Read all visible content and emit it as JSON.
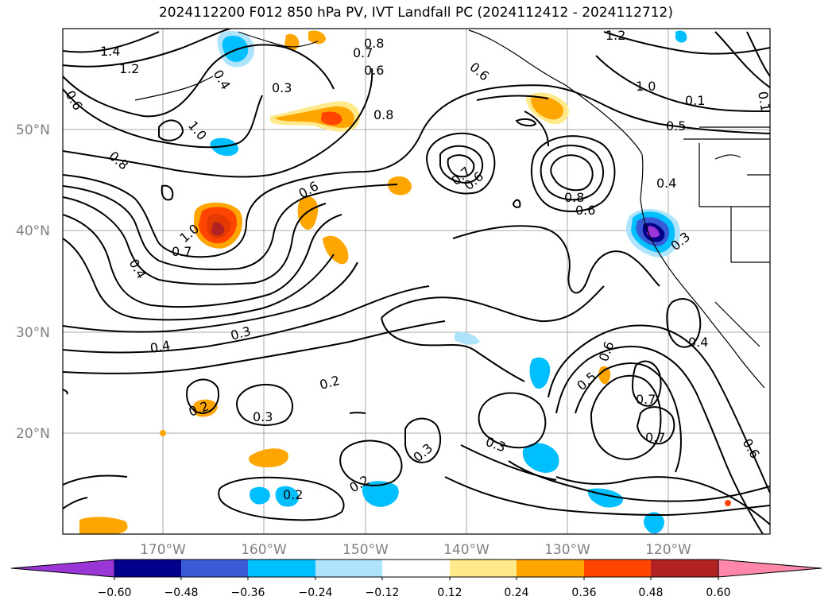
{
  "title": "2024112200 F012 850 hPa PV, IVT Landfall PC (2024112412 - 2024112712)",
  "map": {
    "lat_labels": [
      "50°N",
      "40°N",
      "30°N",
      "20°N"
    ],
    "lon_labels": [
      "170°W",
      "160°W",
      "150°W",
      "140°W",
      "130°W",
      "120°W"
    ],
    "contour_labels": [
      "1.4",
      "1.2",
      "0.6",
      "0.4",
      "0.3",
      "0.8",
      "0.7",
      "0.6",
      "0.6",
      "0.8",
      "1.2",
      "1.0",
      "0.1",
      "0.5",
      "1.0",
      "0.8",
      "0.6",
      "0.7",
      "0.6",
      "0.8",
      "0.6",
      "0.4",
      "1.0",
      "0.7",
      "0.4",
      "0.3",
      "0.4",
      "0.3",
      "0.2",
      "0.2",
      "0.3",
      "0.2",
      "0.2",
      "0.3",
      "0.3",
      "0.6",
      "0.5",
      "0.7",
      "0.7",
      "0.4",
      "0.6",
      "0.1"
    ]
  },
  "colorbar": {
    "ticks": [
      "−0.60",
      "−0.48",
      "−0.36",
      "−0.24",
      "−0.12",
      "0.12",
      "0.24",
      "0.36",
      "0.48",
      "0.60"
    ],
    "colors": [
      "#9a35d6",
      "#00008b",
      "#3a5bd6",
      "#00bfff",
      "#aee4fb",
      "#ffffff",
      "#ffe98a",
      "#ffa500",
      "#ff4500",
      "#b22222",
      "#ff88aa"
    ]
  }
}
